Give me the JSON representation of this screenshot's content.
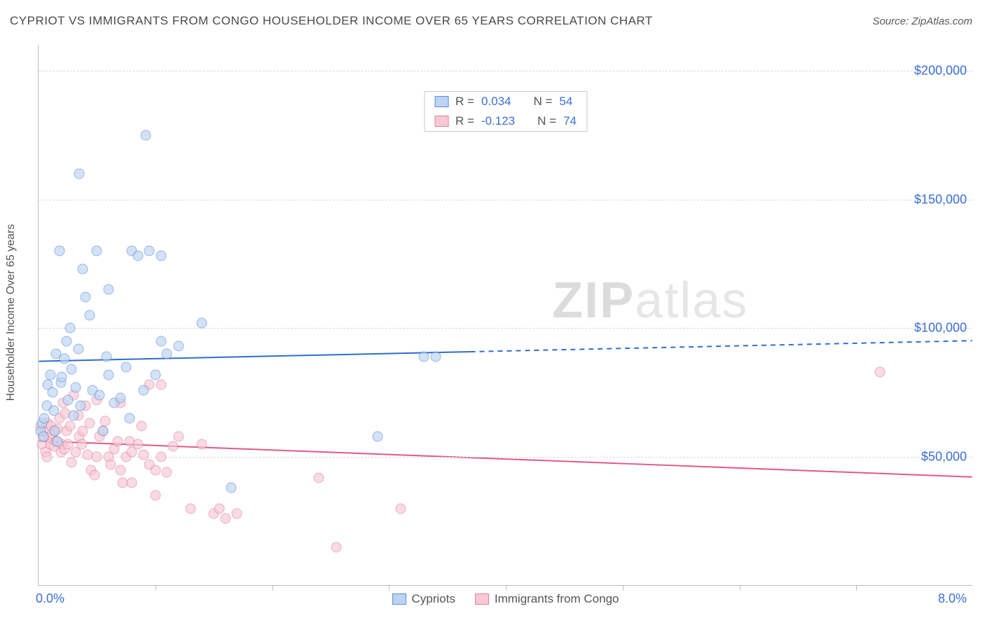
{
  "title": "CYPRIOT VS IMMIGRANTS FROM CONGO HOUSEHOLDER INCOME OVER 65 YEARS CORRELATION CHART",
  "source": "Source: ZipAtlas.com",
  "watermark_a": "ZIP",
  "watermark_b": "atlas",
  "chart": {
    "type": "scatter",
    "xlim": [
      0,
      8
    ],
    "ylim": [
      0,
      210000
    ],
    "x_ticks": [
      0,
      8
    ],
    "x_tick_labels": [
      "0.0%",
      "8.0%"
    ],
    "x_minor_ticks": [
      1,
      2,
      3,
      4,
      5,
      6,
      7
    ],
    "y_gridlines": [
      50000,
      100000,
      150000,
      200000
    ],
    "y_tick_labels": [
      "$50,000",
      "$100,000",
      "$150,000",
      "$200,000"
    ],
    "ylabel": "Householder Income Over 65 years",
    "background_color": "#ffffff",
    "grid_color": "#d9d9d9",
    "marker_radius": 7.5,
    "marker_border_width": 1.2,
    "series": [
      {
        "name": "Cypriots",
        "fill": "#bdd4f2",
        "stroke": "#5e8ed6",
        "fill_opacity": 0.65,
        "line_color": "#2f6dd0",
        "line_width": 2,
        "R_label": "R =",
        "R": "0.034",
        "N_label": "N =",
        "N": "54",
        "reg": {
          "x1": 0,
          "y1": 87000,
          "x2": 8,
          "y2": 95000,
          "solid_until_x": 3.7
        },
        "points": [
          [
            0.02,
            60000
          ],
          [
            0.03,
            63000
          ],
          [
            0.04,
            58000
          ],
          [
            0.05,
            65000
          ],
          [
            0.07,
            70000
          ],
          [
            0.08,
            78000
          ],
          [
            0.1,
            82000
          ],
          [
            0.12,
            75000
          ],
          [
            0.13,
            68000
          ],
          [
            0.14,
            60000
          ],
          [
            0.15,
            90000
          ],
          [
            0.16,
            56000
          ],
          [
            0.18,
            130000
          ],
          [
            0.19,
            79000
          ],
          [
            0.2,
            81000
          ],
          [
            0.22,
            88000
          ],
          [
            0.24,
            95000
          ],
          [
            0.25,
            72000
          ],
          [
            0.27,
            100000
          ],
          [
            0.28,
            84000
          ],
          [
            0.3,
            66000
          ],
          [
            0.32,
            77000
          ],
          [
            0.34,
            92000
          ],
          [
            0.36,
            70000
          ],
          [
            0.38,
            123000
          ],
          [
            0.4,
            112000
          ],
          [
            0.35,
            160000
          ],
          [
            0.44,
            105000
          ],
          [
            0.46,
            76000
          ],
          [
            0.5,
            130000
          ],
          [
            0.52,
            74000
          ],
          [
            0.55,
            60000
          ],
          [
            0.58,
            89000
          ],
          [
            0.6,
            82000
          ],
          [
            0.6,
            115000
          ],
          [
            0.65,
            71000
          ],
          [
            0.7,
            73000
          ],
          [
            0.75,
            85000
          ],
          [
            0.78,
            65000
          ],
          [
            0.8,
            130000
          ],
          [
            0.85,
            128000
          ],
          [
            0.9,
            76000
          ],
          [
            0.92,
            175000
          ],
          [
            0.95,
            130000
          ],
          [
            1.0,
            82000
          ],
          [
            1.05,
            95000
          ],
          [
            1.05,
            128000
          ],
          [
            1.1,
            90000
          ],
          [
            1.2,
            93000
          ],
          [
            1.4,
            102000
          ],
          [
            1.65,
            38000
          ],
          [
            2.9,
            58000
          ],
          [
            3.3,
            89000
          ],
          [
            3.4,
            89000
          ]
        ]
      },
      {
        "name": "Immigrants from Congo",
        "fill": "#f7c9d4",
        "stroke": "#e282a0",
        "fill_opacity": 0.65,
        "line_color": "#e05a88",
        "line_width": 2,
        "R_label": "R =",
        "R": "-0.123",
        "N_label": "N =",
        "N": "74",
        "reg": {
          "x1": 0,
          "y1": 56000,
          "x2": 8,
          "y2": 42000,
          "solid_until_x": 8
        },
        "points": [
          [
            0.02,
            62000
          ],
          [
            0.03,
            55000
          ],
          [
            0.04,
            60000
          ],
          [
            0.05,
            58000
          ],
          [
            0.06,
            52000
          ],
          [
            0.07,
            50000
          ],
          [
            0.08,
            63000
          ],
          [
            0.09,
            57000
          ],
          [
            0.1,
            55000
          ],
          [
            0.11,
            62000
          ],
          [
            0.12,
            59000
          ],
          [
            0.13,
            54000
          ],
          [
            0.14,
            60000
          ],
          [
            0.15,
            56000
          ],
          [
            0.16,
            61000
          ],
          [
            0.18,
            65000
          ],
          [
            0.19,
            52000
          ],
          [
            0.2,
            55000
          ],
          [
            0.21,
            71000
          ],
          [
            0.22,
            53000
          ],
          [
            0.23,
            67000
          ],
          [
            0.24,
            60000
          ],
          [
            0.25,
            55000
          ],
          [
            0.27,
            62000
          ],
          [
            0.28,
            48000
          ],
          [
            0.3,
            74000
          ],
          [
            0.32,
            52000
          ],
          [
            0.34,
            66000
          ],
          [
            0.35,
            58000
          ],
          [
            0.37,
            55000
          ],
          [
            0.38,
            60000
          ],
          [
            0.4,
            70000
          ],
          [
            0.42,
            51000
          ],
          [
            0.44,
            63000
          ],
          [
            0.45,
            45000
          ],
          [
            0.48,
            43000
          ],
          [
            0.5,
            50000
          ],
          [
            0.5,
            72000
          ],
          [
            0.52,
            58000
          ],
          [
            0.55,
            60000
          ],
          [
            0.57,
            64000
          ],
          [
            0.6,
            50000
          ],
          [
            0.62,
            47000
          ],
          [
            0.65,
            53000
          ],
          [
            0.68,
            56000
          ],
          [
            0.7,
            45000
          ],
          [
            0.7,
            71000
          ],
          [
            0.72,
            40000
          ],
          [
            0.75,
            50000
          ],
          [
            0.78,
            56000
          ],
          [
            0.8,
            52000
          ],
          [
            0.8,
            40000
          ],
          [
            0.85,
            55000
          ],
          [
            0.88,
            62000
          ],
          [
            0.9,
            51000
          ],
          [
            0.95,
            47000
          ],
          [
            0.95,
            78000
          ],
          [
            1.0,
            45000
          ],
          [
            1.0,
            35000
          ],
          [
            1.05,
            50000
          ],
          [
            1.05,
            78000
          ],
          [
            1.1,
            44000
          ],
          [
            1.15,
            54000
          ],
          [
            1.2,
            58000
          ],
          [
            1.3,
            30000
          ],
          [
            1.4,
            55000
          ],
          [
            1.5,
            28000
          ],
          [
            1.55,
            30000
          ],
          [
            1.6,
            26000
          ],
          [
            1.7,
            28000
          ],
          [
            2.4,
            42000
          ],
          [
            2.55,
            15000
          ],
          [
            3.1,
            30000
          ],
          [
            7.2,
            83000
          ]
        ]
      }
    ],
    "legend": [
      {
        "label": "Cypriots",
        "fill": "#bdd4f2",
        "stroke": "#5e8ed6"
      },
      {
        "label": "Immigrants from Congo",
        "fill": "#f7c9d4",
        "stroke": "#e282a0"
      }
    ]
  }
}
